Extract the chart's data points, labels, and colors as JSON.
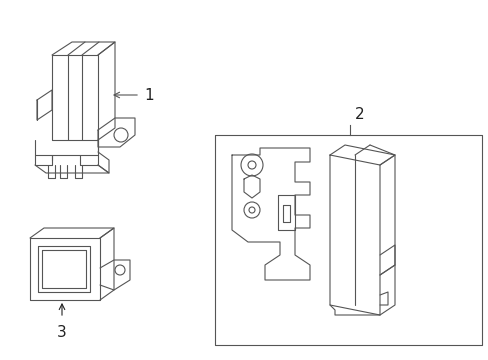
{
  "bg_color": "#ffffff",
  "line_color": "#555555",
  "line_width": 0.8,
  "fig_width": 4.89,
  "fig_height": 3.6,
  "dpi": 100,
  "label1": "1",
  "label2": "2",
  "label3": "3",
  "font_size": 11
}
